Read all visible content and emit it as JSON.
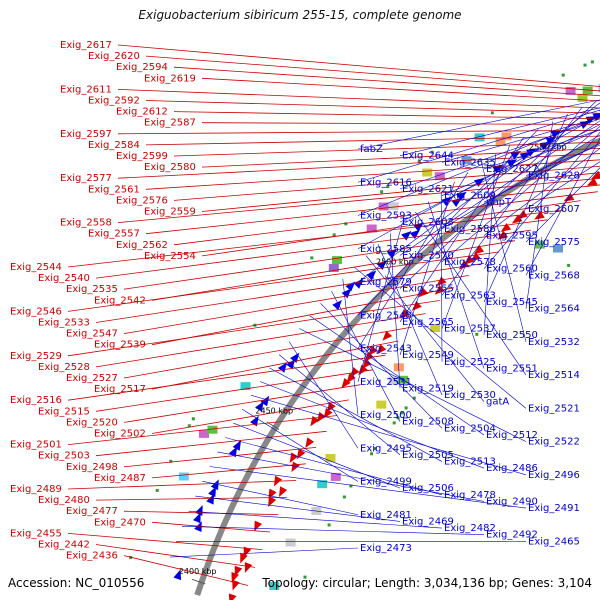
{
  "title": "Exiguobacterium sibiricum 255-15, complete genome",
  "footer": {
    "accession": "Accession: NC_010556",
    "summary": "Topology: circular; Length: 3,034,136 bp; Genes: 3,104"
  },
  "ticks": [
    "2650 kbp",
    "2600 kbp",
    "2550 kbp",
    "2500 kbp",
    "2450 kbp",
    "2400 kbp"
  ],
  "colors": {
    "forward": "#dd0000",
    "reverse": "#0000dd",
    "left_label": "#cc0000",
    "right_label": "#0000cc",
    "backbone": "#888888"
  },
  "left_labels": [
    "Exig_2617",
    "Exig_2620",
    "Exig_2594",
    "Exig_2619",
    "Exig_2611",
    "Exig_2592",
    "Exig_2612",
    "Exig_2587",
    "Exig_2597",
    "Exig_2584",
    "Exig_2599",
    "Exig_2580",
    "Exig_2577",
    "Exig_2561",
    "Exig_2576",
    "Exig_2559",
    "Exig_2558",
    "Exig_2557",
    "Exig_2562",
    "Exig_2554",
    "Exig_2544",
    "Exig_2540",
    "Exig_2535",
    "Exig_2542",
    "Exig_2546",
    "Exig_2533",
    "Exig_2547",
    "Exig_2539",
    "Exig_2529",
    "Exig_2528",
    "Exig_2527",
    "Exig_2517",
    "Exig_2516",
    "Exig_2515",
    "Exig_2520",
    "Exig_2502",
    "Exig_2501",
    "Exig_2503",
    "Exig_2498",
    "Exig_2487",
    "Exig_2489",
    "Exig_2480",
    "Exig_2477",
    "Exig_2470",
    "Exig_2455",
    "Exig_2442",
    "Exig_2436"
  ],
  "right_labels": [
    "fabZ",
    "Exig_2644",
    "Exig_2635",
    "Exig_2627",
    "Exig_2628",
    "Exig_2616",
    "Exig_2621",
    "Exig_2609",
    "uhpT",
    "Exig_2607",
    "Exig_2593",
    "Exig_2603",
    "Exig_2586",
    "Exig_2595",
    "Exig_2575",
    "Exig_2585",
    "Exig_2570",
    "Exig_2578",
    "Exig_2560",
    "Exig_2568",
    "Exig_2579",
    "Exig_2555",
    "Exig_2563",
    "Exig_2545",
    "Exig_2564",
    "Exig_2548",
    "Exig_2565",
    "Exig_2537",
    "Exig_2550",
    "Exig_2532",
    "Exig_2543",
    "Exig_2549",
    "Exig_2525",
    "Exig_2551",
    "Exig_2514",
    "Exig_2531",
    "Exig_2519",
    "Exig_2530",
    "gatA",
    "Exig_2521",
    "Exig_2500",
    "Exig_2508",
    "Exig_2504",
    "Exig_2512",
    "Exig_2522",
    "Exig_2495",
    "Exig_2505",
    "Exig_2513",
    "Exig_2486",
    "Exig_2496",
    "Exig_2499",
    "Exig_2506",
    "Exig_2478",
    "Exig_2490",
    "Exig_2491",
    "Exig_2481",
    "Exig_2469",
    "Exig_2482",
    "Exig_2492",
    "Exig_2465",
    "Exig_2473"
  ]
}
